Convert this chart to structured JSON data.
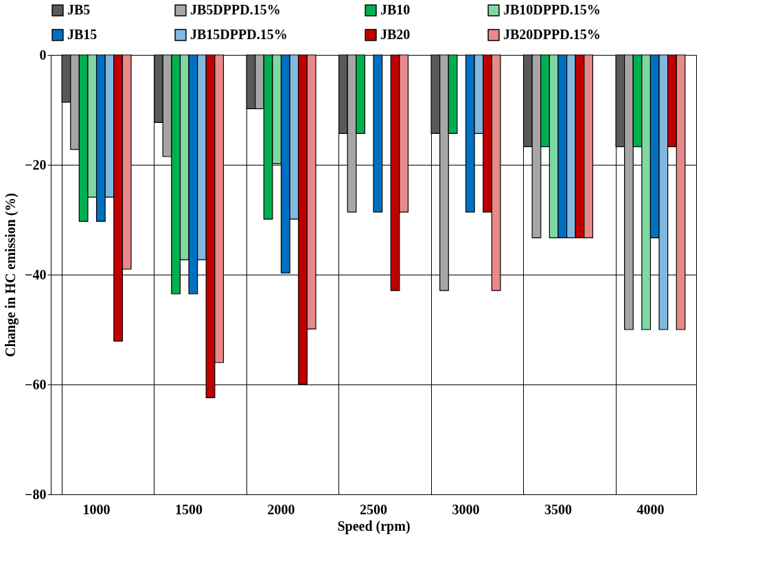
{
  "chart_data": {
    "type": "bar",
    "xlabel": "Speed (rpm)",
    "ylabel": "Change in HC emission (%)",
    "categories": [
      "1000",
      "1500",
      "2000",
      "2500",
      "3000",
      "3500",
      "4000"
    ],
    "series": [
      {
        "name": "JB5",
        "color": "#595959",
        "values": [
          -8.6,
          -12.3,
          -9.8,
          -14.3,
          -14.3,
          -16.7,
          -16.7
        ]
      },
      {
        "name": "JB5DPPD.15%",
        "color": "#a6a6a6",
        "values": [
          -17.2,
          -18.5,
          -9.8,
          -28.6,
          -42.9,
          -33.3,
          -50
        ]
      },
      {
        "name": "JB10",
        "color": "#00b050",
        "values": [
          -30.3,
          -43.5,
          -29.9,
          -14.3,
          -14.3,
          -16.7,
          -16.7
        ]
      },
      {
        "name": "JB10DPPD.15%",
        "color": "#7fd8a4",
        "values": [
          -25.9,
          -37.3,
          -19.8,
          null,
          null,
          -33.3,
          -50
        ]
      },
      {
        "name": "JB15",
        "color": "#0070c0",
        "values": [
          -30.3,
          -43.5,
          -39.7,
          -28.6,
          -28.6,
          -33.3,
          -33.3
        ]
      },
      {
        "name": "JB15DPPD.15%",
        "color": "#80b8e0",
        "values": [
          -25.9,
          -37.3,
          -29.9,
          null,
          -14.3,
          -33.3,
          -50
        ]
      },
      {
        "name": "JB20",
        "color": "#c00000",
        "values": [
          -52.1,
          -62.4,
          -59.9,
          -42.9,
          -28.6,
          -33.3,
          -16.7
        ]
      },
      {
        "name": "JB20DPPD.15%",
        "color": "#e88a8a",
        "values": [
          -39,
          -56,
          -49.9,
          -28.6,
          -42.9,
          -33.3,
          -50
        ]
      }
    ],
    "ylim": [
      -80,
      0
    ],
    "yticks": [
      -80,
      -60,
      -40,
      -20,
      0
    ],
    "grid": true,
    "legend": "top"
  }
}
